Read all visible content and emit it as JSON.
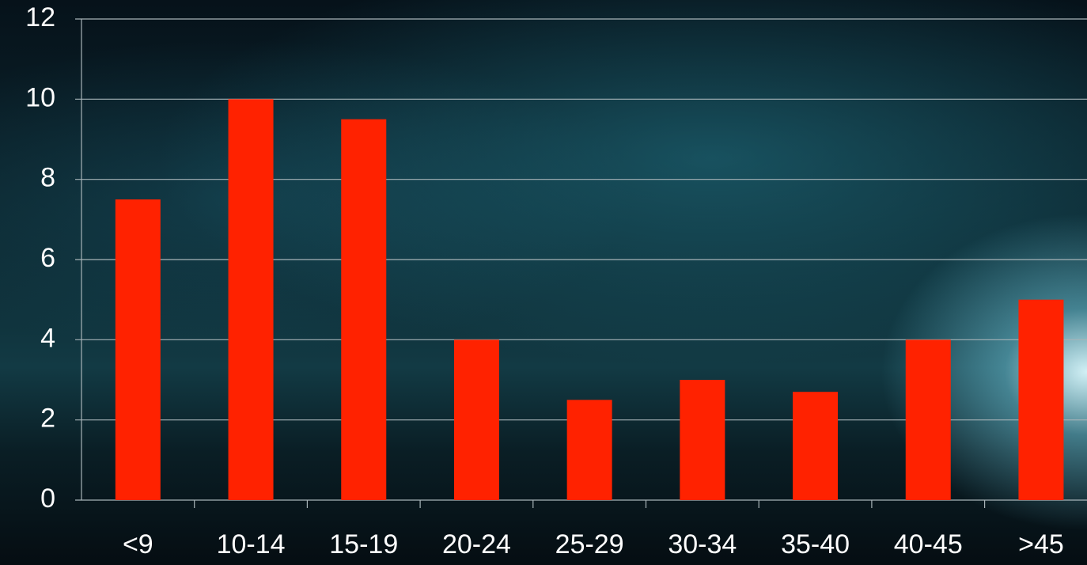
{
  "chart_data": {
    "type": "bar",
    "categories": [
      "<9",
      "10-14",
      "15-19",
      "20-24",
      "25-29",
      "30-34",
      "35-40",
      "40-45",
      ">45"
    ],
    "values": [
      7.5,
      10,
      9.5,
      4,
      2.5,
      3,
      2.7,
      4,
      5
    ],
    "color": "#ff2200",
    "ylim": [
      0,
      12
    ],
    "yticks": [
      0,
      2,
      4,
      6,
      8,
      10,
      12
    ],
    "grid": true
  }
}
